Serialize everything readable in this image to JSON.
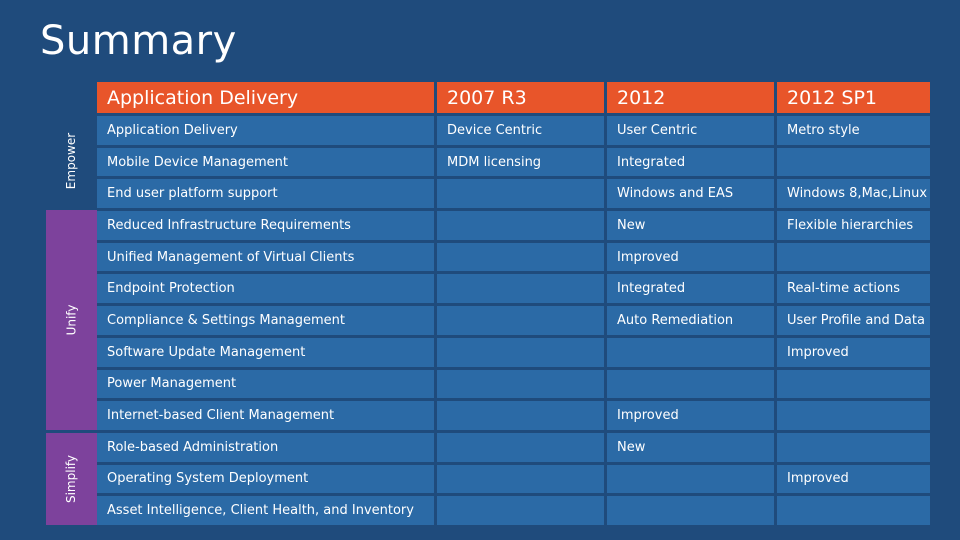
{
  "slide": {
    "title": "Summary"
  },
  "sections": {
    "empower": "Empower",
    "unify": "Unify",
    "simplify": "Simplify"
  },
  "table": {
    "headers": [
      "Application Delivery",
      "2007 R3",
      "2012",
      "2012 SP1"
    ],
    "rows": [
      [
        "Application Delivery",
        "Device Centric",
        "User Centric",
        "Metro style"
      ],
      [
        "Mobile Device Management",
        "MDM licensing",
        "Integrated",
        ""
      ],
      [
        "End user platform support",
        "",
        "Windows and EAS",
        "Windows 8,Mac,Linux"
      ],
      [
        "Reduced Infrastructure Requirements",
        "",
        "New",
        "Flexible hierarchies"
      ],
      [
        "Unified Management of Virtual Clients",
        "",
        "Improved",
        ""
      ],
      [
        "Endpoint Protection",
        "",
        "Integrated",
        "Real-time actions"
      ],
      [
        "Compliance & Settings Management",
        "",
        "Auto Remediation",
        "User Profile and Data"
      ],
      [
        "Software Update Management",
        "",
        "",
        "Improved"
      ],
      [
        "Power Management",
        "",
        "",
        ""
      ],
      [
        "Internet-based Client Management",
        "",
        "Improved",
        ""
      ],
      [
        "Role-based Administration",
        "",
        "New",
        ""
      ],
      [
        "Operating System Deployment",
        "",
        "",
        "Improved"
      ],
      [
        "Asset Intelligence, Client Health, and Inventory",
        "",
        "",
        ""
      ]
    ]
  }
}
